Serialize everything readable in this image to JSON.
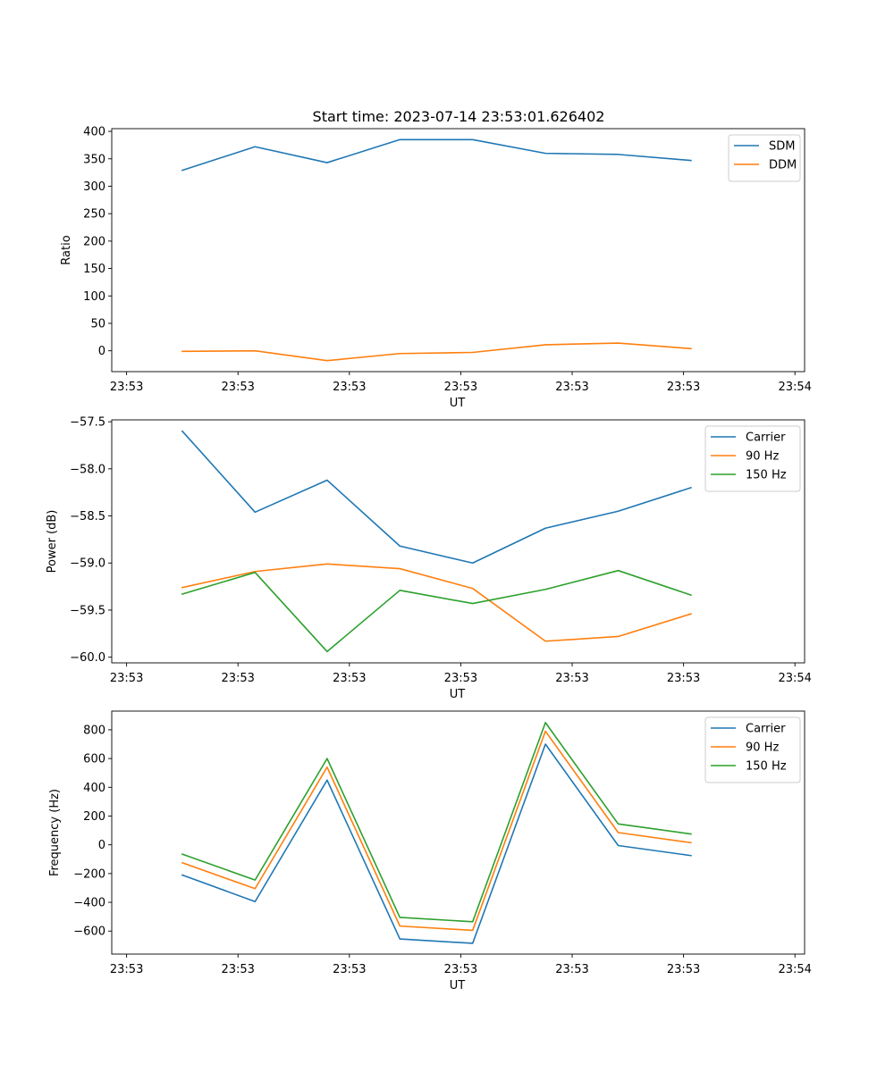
{
  "figure_title": "Start time: 2023-07-14 23:53:01.626402",
  "colors": {
    "blue": "#1f77b4",
    "orange": "#ff7f0e",
    "green": "#2ca02c"
  },
  "chart_data": [
    {
      "type": "line",
      "title": "Start time: 2023-07-14 23:53:01.626402",
      "xlabel": "UT",
      "ylabel": "Ratio",
      "xlim": [
        0,
        9.33
      ],
      "ylim": [
        -38,
        405
      ],
      "yticks": [
        0,
        50,
        100,
        150,
        200,
        250,
        300,
        350,
        400
      ],
      "ytick_labels": [
        "0",
        "50",
        "100",
        "150",
        "200",
        "250",
        "300",
        "350",
        "400"
      ],
      "xtick_positions": [
        0.2,
        1.7,
        3.2,
        4.7,
        6.2,
        7.7,
        9.2
      ],
      "xtick_labels": [
        "23:53",
        "23:53",
        "23:53",
        "23:53",
        "23:53",
        "23:53",
        "23:54"
      ],
      "x": [
        0.95,
        1.93,
        2.9,
        3.88,
        4.86,
        5.84,
        6.82,
        7.8
      ],
      "legend": "top-right",
      "series": [
        {
          "name": "SDM",
          "color": "#1f77b4",
          "values": [
            329,
            372,
            343,
            385,
            385,
            360,
            358,
            347
          ]
        },
        {
          "name": "DDM",
          "color": "#ff7f0e",
          "values": [
            -1,
            0,
            -18,
            -5,
            -3,
            11,
            14,
            4
          ]
        }
      ]
    },
    {
      "type": "line",
      "title": "",
      "xlabel": "UT",
      "ylabel": "Power (dB)",
      "xlim": [
        0,
        9.33
      ],
      "ylim": [
        -60.06,
        -57.48
      ],
      "yticks": [
        -60.0,
        -59.5,
        -59.0,
        -58.5,
        -58.0,
        -57.5
      ],
      "ytick_labels": [
        "−60.0",
        "−59.5",
        "−59.0",
        "−58.5",
        "−58.0",
        "−57.5"
      ],
      "xtick_positions": [
        0.2,
        1.7,
        3.2,
        4.7,
        6.2,
        7.7,
        9.2
      ],
      "xtick_labels": [
        "23:53",
        "23:53",
        "23:53",
        "23:53",
        "23:53",
        "23:53",
        "23:54"
      ],
      "x": [
        0.95,
        1.93,
        2.9,
        3.88,
        4.86,
        5.84,
        6.82,
        7.8
      ],
      "legend": "top-right",
      "series": [
        {
          "name": "Carrier",
          "color": "#1f77b4",
          "values": [
            -57.6,
            -58.46,
            -58.12,
            -58.82,
            -59.0,
            -58.63,
            -58.45,
            -58.2
          ]
        },
        {
          "name": "90 Hz",
          "color": "#ff7f0e",
          "values": [
            -59.26,
            -59.09,
            -59.01,
            -59.06,
            -59.27,
            -59.83,
            -59.78,
            -59.54
          ]
        },
        {
          "name": "150 Hz",
          "color": "#2ca02c",
          "values": [
            -59.33,
            -59.1,
            -59.94,
            -59.29,
            -59.43,
            -59.28,
            -59.08,
            -59.34
          ]
        }
      ]
    },
    {
      "type": "line",
      "title": "",
      "xlabel": "UT",
      "ylabel": "Frequency (Hz)",
      "xlim": [
        0,
        9.33
      ],
      "ylim": [
        -760,
        930
      ],
      "yticks": [
        -600,
        -400,
        -200,
        0,
        200,
        400,
        600,
        800
      ],
      "ytick_labels": [
        "−600",
        "−400",
        "−200",
        "0",
        "200",
        "400",
        "600",
        "800"
      ],
      "xtick_positions": [
        0.2,
        1.7,
        3.2,
        4.7,
        6.2,
        7.7,
        9.2
      ],
      "xtick_labels": [
        "23:53",
        "23:53",
        "23:53",
        "23:53",
        "23:53",
        "23:53",
        "23:54"
      ],
      "x": [
        0.95,
        1.93,
        2.9,
        3.88,
        4.86,
        5.84,
        6.82,
        7.8
      ],
      "legend": "top-right",
      "series": [
        {
          "name": "Carrier",
          "color": "#1f77b4",
          "values": [
            -210,
            -395,
            450,
            -655,
            -685,
            700,
            -5,
            -75
          ]
        },
        {
          "name": "90 Hz",
          "color": "#ff7f0e",
          "values": [
            -125,
            -305,
            540,
            -565,
            -595,
            790,
            85,
            15
          ]
        },
        {
          "name": "150 Hz",
          "color": "#2ca02c",
          "values": [
            -65,
            -245,
            600,
            -505,
            -535,
            850,
            145,
            75
          ]
        }
      ]
    }
  ]
}
